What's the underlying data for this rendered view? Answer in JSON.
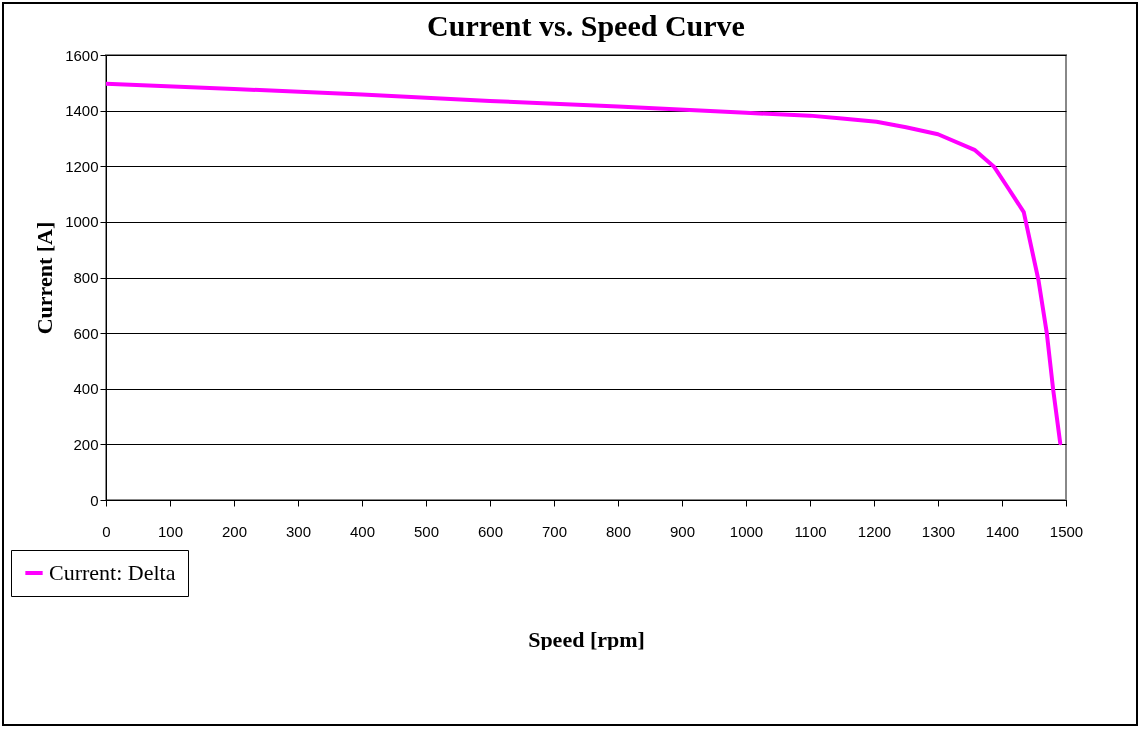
{
  "chart_data": {
    "type": "line",
    "title": "Current vs. Speed Curve",
    "xlabel": "Speed [rpm]",
    "ylabel": "Current [A]",
    "series": [
      {
        "name": "Current: Delta",
        "color": "#ff00ff",
        "x": [
          0,
          200,
          400,
          600,
          800,
          1000,
          1100,
          1150,
          1204,
          1250,
          1300,
          1357,
          1388,
          1410,
          1434,
          1457,
          1470,
          1480,
          1491
        ],
        "values": [
          1497,
          1478,
          1458,
          1435,
          1415,
          1392,
          1382,
          1372,
          1360,
          1340,
          1315,
          1259,
          1197,
          1120,
          1035,
          790,
          600,
          396,
          204
        ]
      }
    ],
    "xlim": [
      0,
      1500
    ],
    "xticks": [
      0,
      100,
      200,
      300,
      400,
      500,
      600,
      700,
      800,
      900,
      1000,
      1100,
      1200,
      1300,
      1400,
      1500
    ],
    "ylim": [
      0,
      1600
    ],
    "yticks": [
      0,
      200,
      400,
      600,
      800,
      1000,
      1200,
      1400,
      1600
    ],
    "grid": "y",
    "legend": "bottom left",
    "marker": "none",
    "line_style": "solid"
  }
}
